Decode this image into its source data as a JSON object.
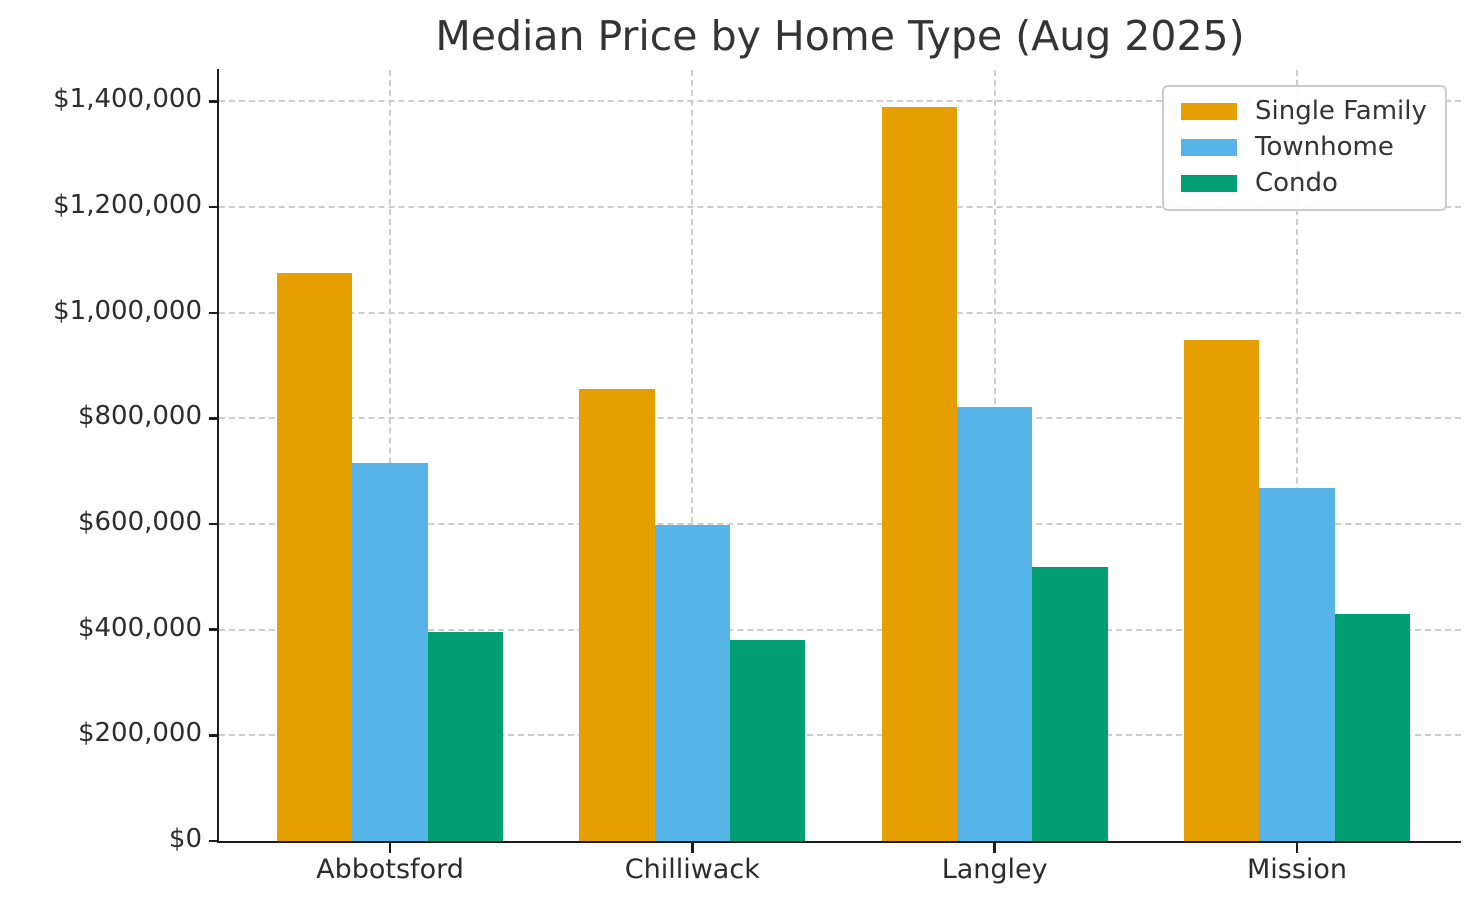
{
  "title": "Median Price by Home Type (Aug 2025)",
  "chart_data": {
    "type": "bar",
    "title": "Median Price by Home Type (Aug 2025)",
    "xlabel": "",
    "ylabel": "",
    "categories": [
      "Abbotsford",
      "Chilliwack",
      "Langley",
      "Mission"
    ],
    "series": [
      {
        "name": "Single Family",
        "color": "#E69F00",
        "values": [
          1075000,
          856000,
          1390000,
          948000
        ]
      },
      {
        "name": "Townhome",
        "color": "#56B4E9",
        "values": [
          715000,
          598000,
          822000,
          668000
        ]
      },
      {
        "name": "Condo",
        "color": "#009E73",
        "values": [
          396000,
          380000,
          518000,
          430000
        ]
      }
    ],
    "ylim": [
      0,
      1460000
    ],
    "y_ticks": [
      0,
      200000,
      400000,
      600000,
      800000,
      1000000,
      1200000,
      1400000
    ],
    "y_tick_labels": [
      "$0",
      "$200,000",
      "$400,000",
      "$600,000",
      "$800,000",
      "$1,000,000",
      "$1,200,000",
      "$1,400,000"
    ],
    "grid": "dashed gridlines on both axes",
    "legend_position": "upper right",
    "legend_entries": [
      "Single Family",
      "Townhome",
      "Condo"
    ]
  },
  "style_colors": {
    "grid": "#cdcdcd",
    "axis": "#1c1c1c",
    "text": "#2c2c2c",
    "background": "#ffffff"
  }
}
